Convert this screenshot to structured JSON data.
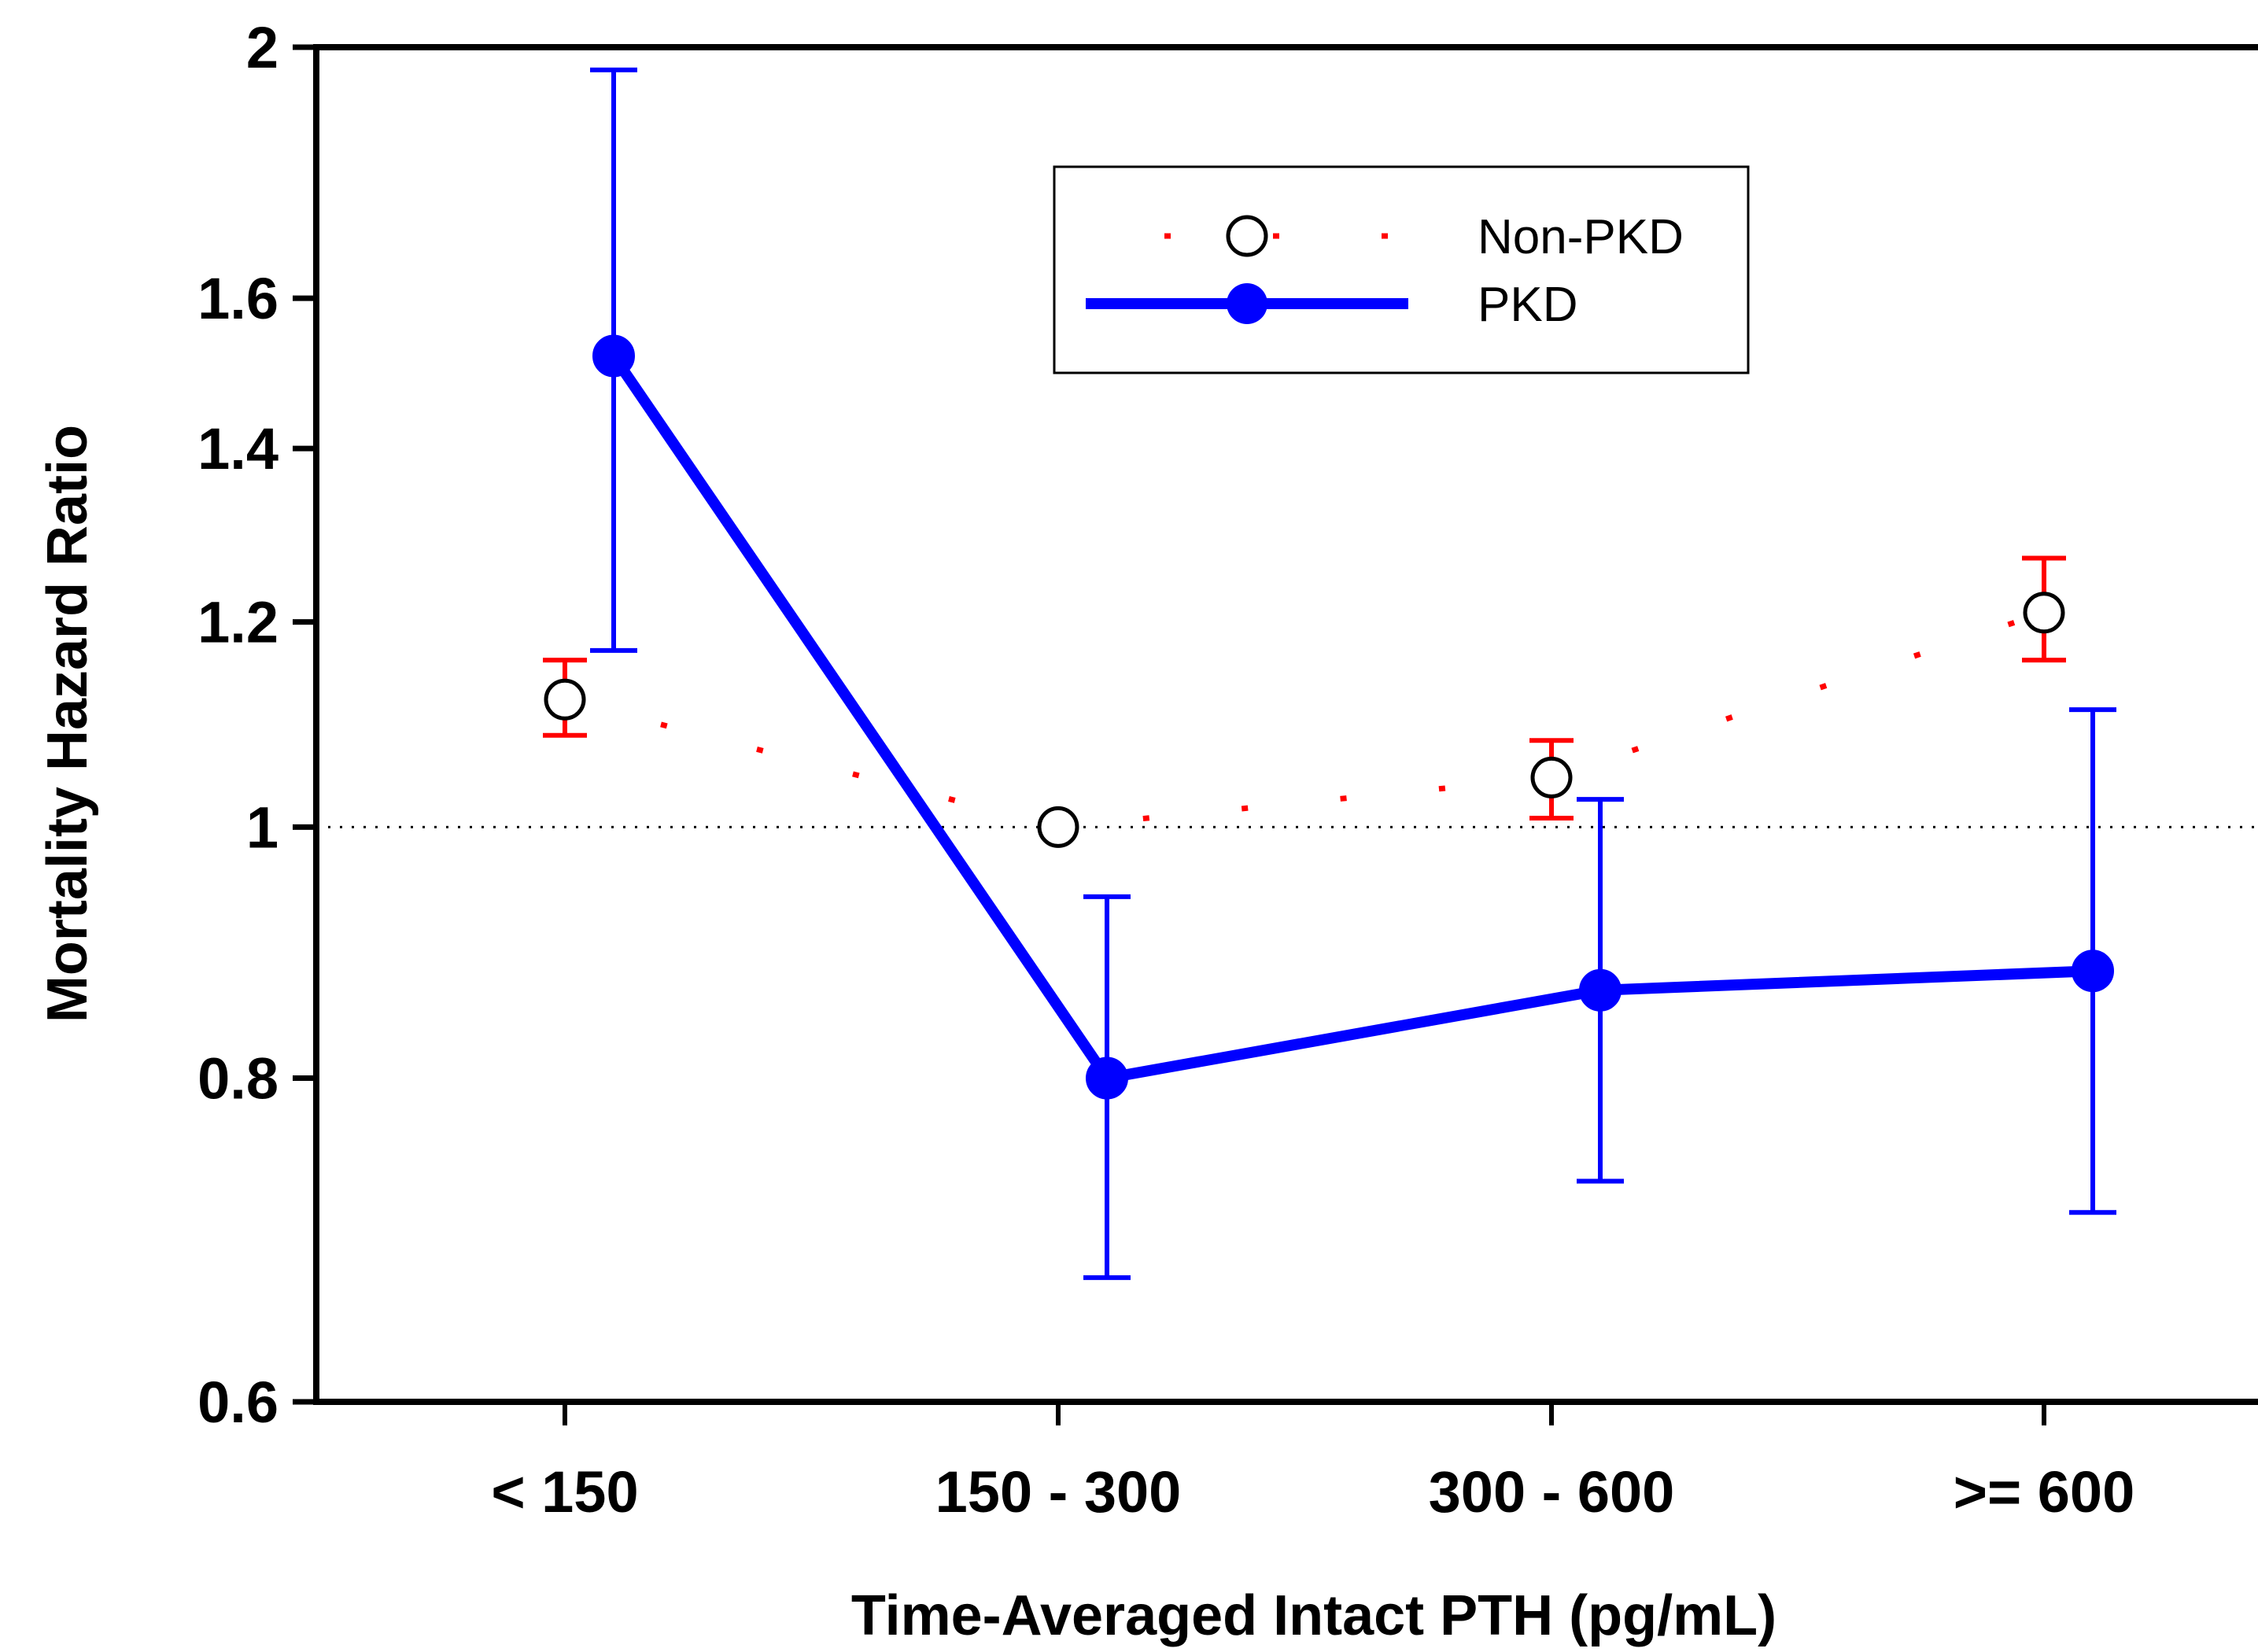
{
  "chart_data": {
    "type": "line",
    "xlabel": "Time-Averaged Intact PTH (pg/mL)",
    "ylabel": "Mortality Hazard Ratio",
    "categories": [
      "< 150",
      "150 - 300",
      "300 - 600",
      ">= 600"
    ],
    "y_scale": "log",
    "ylim": [
      0.6,
      2
    ],
    "yticks": [
      0.6,
      0.8,
      1,
      1.2,
      1.4,
      1.6,
      2
    ],
    "ytick_labels": [
      "0.6",
      "0.8",
      "1",
      "1.2",
      "1.4",
      "1.6",
      "2"
    ],
    "reference_line": 1,
    "legend_position": "top-center",
    "grid": false,
    "series": [
      {
        "name": "Non-PKD",
        "line_style": "dotted",
        "marker": "open-circle",
        "color": "#ff0000",
        "marker_color": "#000000",
        "values": [
          1.12,
          1.0,
          1.045,
          1.21
        ],
        "ci_lower": [
          1.085,
          null,
          1.008,
          1.16
        ],
        "ci_upper": [
          1.16,
          null,
          1.08,
          1.27
        ]
      },
      {
        "name": "PKD",
        "line_style": "solid",
        "marker": "filled-circle",
        "color": "#0000ff",
        "marker_color": "#0000ff",
        "values": [
          1.52,
          0.8,
          0.865,
          0.88
        ],
        "ci_lower": [
          1.17,
          0.67,
          0.73,
          0.71
        ],
        "ci_upper": [
          1.96,
          0.94,
          1.025,
          1.11
        ]
      }
    ]
  }
}
